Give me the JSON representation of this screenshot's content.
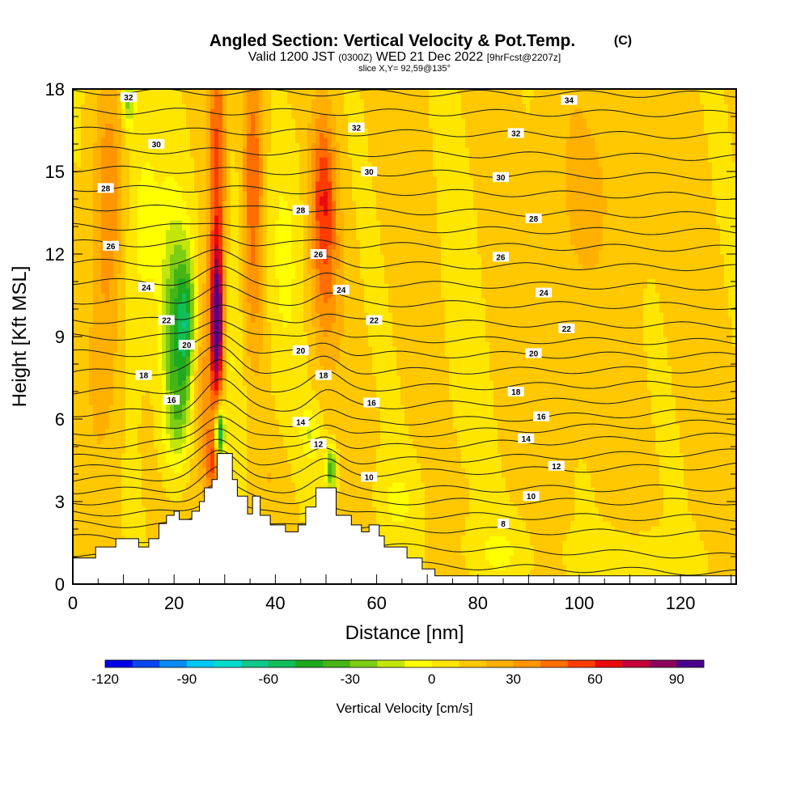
{
  "chart_data": {
    "type": "heatmap",
    "title": "Angled Section: Vertical Velocity & Pot.Temp.",
    "title_mark": "(C)",
    "subtitle_parts": [
      "Valid 1200 JST",
      "(0300Z)",
      "WED 21 Dec 2022",
      "[9hrFcst@2207z]"
    ],
    "slice_label": "slice X,Y= 92,59@135°",
    "xlabel": "Distance [nm]",
    "ylabel": "Height [Kft MSL]",
    "xlim": [
      0,
      131
    ],
    "ylim": [
      0,
      18
    ],
    "x_ticks": [
      0,
      20,
      40,
      60,
      80,
      100,
      120
    ],
    "y_ticks": [
      0,
      3,
      6,
      9,
      12,
      15,
      18
    ],
    "colorbar": {
      "label": "Vertical Velocity [cm/s]",
      "tick_values": [
        -120,
        -90,
        -60,
        -30,
        0,
        30,
        60,
        90
      ],
      "tick_labels": [
        "-120",
        "-90",
        "-60",
        "-30",
        "0",
        "30",
        "60",
        "90"
      ],
      "bins": [
        {
          "from": -120,
          "to": -110,
          "color": "#0000e6"
        },
        {
          "from": -110,
          "to": -100,
          "color": "#0a46f0"
        },
        {
          "from": -100,
          "to": -90,
          "color": "#0a8cf5"
        },
        {
          "from": -90,
          "to": -80,
          "color": "#00c8f5"
        },
        {
          "from": -80,
          "to": -70,
          "color": "#00dccd"
        },
        {
          "from": -70,
          "to": -60,
          "color": "#10c88c"
        },
        {
          "from": -60,
          "to": -50,
          "color": "#10be5a"
        },
        {
          "from": -50,
          "to": -40,
          "color": "#1eaa1e"
        },
        {
          "from": -40,
          "to": -30,
          "color": "#46b414"
        },
        {
          "from": -30,
          "to": -20,
          "color": "#7dcd14"
        },
        {
          "from": -20,
          "to": -10,
          "color": "#c3e60a"
        },
        {
          "from": -10,
          "to": 0,
          "color": "#ffff00"
        },
        {
          "from": 0,
          "to": 10,
          "color": "#ffe600"
        },
        {
          "from": 10,
          "to": 20,
          "color": "#ffc800"
        },
        {
          "from": 20,
          "to": 30,
          "color": "#ffb000"
        },
        {
          "from": 30,
          "to": 40,
          "color": "#ff9600"
        },
        {
          "from": 40,
          "to": 50,
          "color": "#ff6e00"
        },
        {
          "from": 50,
          "to": 60,
          "color": "#ff3c00"
        },
        {
          "from": 60,
          "to": 70,
          "color": "#eb0a0a"
        },
        {
          "from": 70,
          "to": 80,
          "color": "#c3003c"
        },
        {
          "from": 80,
          "to": 90,
          "color": "#8c005a"
        },
        {
          "from": 90,
          "to": 100,
          "color": "#4b008c"
        }
      ]
    },
    "background_velocity_cms": 12,
    "velocity_features": [
      {
        "x_nm": 7,
        "x_width_nm": 3.0,
        "z_kft": 14,
        "z_width_kft": 4.0,
        "value_cms": 40
      },
      {
        "x_nm": 6,
        "x_width_nm": 3.0,
        "z_kft": 8,
        "z_width_kft": 3.5,
        "value_cms": 28
      },
      {
        "x_nm": 14,
        "x_width_nm": 4.0,
        "z_kft": 13,
        "z_width_kft": 4.5,
        "value_cms": -6
      },
      {
        "x_nm": 11,
        "x_width_nm": 1.2,
        "z_kft": 17.5,
        "z_width_kft": 1.0,
        "value_cms": -25
      },
      {
        "x_nm": 20,
        "x_width_nm": 2.6,
        "z_kft": 9.5,
        "z_width_kft": 4.0,
        "value_cms": -30
      },
      {
        "x_nm": 22.5,
        "x_width_nm": 1.8,
        "z_kft": 9.5,
        "z_width_kft": 2.5,
        "value_cms": -40
      },
      {
        "x_nm": 21,
        "x_width_nm": 3.0,
        "z_kft": 6,
        "z_width_kft": 2.0,
        "value_cms": -12
      },
      {
        "x_nm": 26,
        "x_width_nm": 3.0,
        "z_kft": 7,
        "z_width_kft": 3.5,
        "value_cms": 35
      },
      {
        "x_nm": 28.5,
        "x_width_nm": 1.8,
        "z_kft": 14,
        "z_width_kft": 6.5,
        "value_cms": 55
      },
      {
        "x_nm": 28.5,
        "x_width_nm": 1.1,
        "z_kft": 9.5,
        "z_width_kft": 2.5,
        "value_cms": 88
      },
      {
        "x_nm": 27.5,
        "x_width_nm": 1.3,
        "z_kft": 4.5,
        "z_width_kft": 1.2,
        "value_cms": 45
      },
      {
        "x_nm": 29,
        "x_width_nm": 0.9,
        "z_kft": 5.5,
        "z_width_kft": 0.9,
        "value_cms": -70
      },
      {
        "x_nm": 32,
        "x_width_nm": 3.0,
        "z_kft": 10,
        "z_width_kft": 6.0,
        "value_cms": -8
      },
      {
        "x_nm": 35.5,
        "x_width_nm": 2.2,
        "z_kft": 15,
        "z_width_kft": 4.5,
        "value_cms": 52
      },
      {
        "x_nm": 35,
        "x_width_nm": 3.0,
        "z_kft": 10,
        "z_width_kft": 3.0,
        "value_cms": 25
      },
      {
        "x_nm": 42,
        "x_width_nm": 4.0,
        "z_kft": 12,
        "z_width_kft": 5.0,
        "value_cms": 0
      },
      {
        "x_nm": 49.5,
        "x_width_nm": 2.5,
        "z_kft": 14.5,
        "z_width_kft": 2.8,
        "value_cms": 52
      },
      {
        "x_nm": 50,
        "x_width_nm": 3.0,
        "z_kft": 11,
        "z_width_kft": 3.0,
        "value_cms": 35
      },
      {
        "x_nm": 47,
        "x_width_nm": 2.0,
        "z_kft": 5.5,
        "z_width_kft": 1.0,
        "value_cms": -8
      },
      {
        "x_nm": 51,
        "x_width_nm": 1.0,
        "z_kft": 4.2,
        "z_width_kft": 0.8,
        "value_cms": -40
      },
      {
        "x_nm": 39,
        "x_width_nm": 2.0,
        "z_kft": 4.0,
        "z_width_kft": 1.0,
        "value_cms": 18
      },
      {
        "x_nm": 64,
        "x_width_nm": 4.0,
        "z_kft": 3.0,
        "z_width_kft": 1.5,
        "value_cms": 0
      },
      {
        "x_nm": 76,
        "x_width_nm": 4.0,
        "z_kft": 9.0,
        "z_width_kft": 8.0,
        "value_cms": 8
      },
      {
        "x_nm": 98,
        "x_width_nm": 6.0,
        "z_kft": 13.0,
        "z_width_kft": 6.0,
        "value_cms": 20
      },
      {
        "x_nm": 108,
        "x_width_nm": 6.0,
        "z_kft": 15.0,
        "z_width_kft": 4.0,
        "value_cms": 18
      },
      {
        "x_nm": 84,
        "x_width_nm": 6.0,
        "z_kft": 1.2,
        "z_width_kft": 1.2,
        "value_cms": 0
      },
      {
        "x_nm": 110,
        "x_width_nm": 12.0,
        "z_kft": 1.0,
        "z_width_kft": 0.9,
        "value_cms": 0
      }
    ],
    "terrain_kft": [
      [
        0,
        0.95
      ],
      [
        4.5,
        0.95
      ],
      [
        4.5,
        1.35
      ],
      [
        8.5,
        1.35
      ],
      [
        8.5,
        1.65
      ],
      [
        13,
        1.65
      ],
      [
        13,
        1.35
      ],
      [
        15,
        1.35
      ],
      [
        15,
        1.65
      ],
      [
        17,
        1.65
      ],
      [
        17,
        2.2
      ],
      [
        18.5,
        2.2
      ],
      [
        18.5,
        2.5
      ],
      [
        20,
        2.5
      ],
      [
        20,
        2.65
      ],
      [
        21,
        2.65
      ],
      [
        21,
        2.35
      ],
      [
        23.5,
        2.35
      ],
      [
        23.5,
        2.65
      ],
      [
        25,
        2.65
      ],
      [
        25,
        3.0
      ],
      [
        26,
        3.0
      ],
      [
        26,
        3.5
      ],
      [
        27.5,
        3.5
      ],
      [
        27.5,
        3.8
      ],
      [
        28.5,
        3.8
      ],
      [
        28.5,
        4.75
      ],
      [
        31.5,
        4.75
      ],
      [
        31.5,
        3.8
      ],
      [
        32.5,
        3.8
      ],
      [
        32.5,
        3.2
      ],
      [
        34.5,
        3.2
      ],
      [
        34.5,
        2.55
      ],
      [
        35.5,
        2.55
      ],
      [
        35.5,
        3.2
      ],
      [
        37,
        3.2
      ],
      [
        37,
        2.5
      ],
      [
        39,
        2.5
      ],
      [
        39,
        2.15
      ],
      [
        42,
        2.15
      ],
      [
        42,
        1.9
      ],
      [
        44.5,
        1.9
      ],
      [
        44.5,
        2.15
      ],
      [
        46,
        2.15
      ],
      [
        46,
        2.8
      ],
      [
        48,
        2.8
      ],
      [
        48,
        3.5
      ],
      [
        52,
        3.5
      ],
      [
        52,
        2.5
      ],
      [
        55,
        2.5
      ],
      [
        55,
        2.15
      ],
      [
        57,
        2.15
      ],
      [
        57,
        1.9
      ],
      [
        58.5,
        1.9
      ],
      [
        58.5,
        2.15
      ],
      [
        60.5,
        2.15
      ],
      [
        60.5,
        1.75
      ],
      [
        61.5,
        1.75
      ],
      [
        61.5,
        1.35
      ],
      [
        66,
        1.35
      ],
      [
        66,
        0.95
      ],
      [
        69,
        0.95
      ],
      [
        69,
        0.55
      ],
      [
        71.5,
        0.55
      ],
      [
        71.5,
        0.3
      ],
      [
        131,
        0.3
      ]
    ],
    "isentropes_c": [
      {
        "c": 6,
        "y_left_kft": 1.0,
        "y_right_kft": 0.4
      },
      {
        "c": 7,
        "y_left_kft": 1.7,
        "y_right_kft": 1.0
      },
      {
        "c": 8,
        "y_left_kft": 2.2,
        "y_right_kft": 1.8
      },
      {
        "c": 9,
        "y_left_kft": 2.6,
        "y_right_kft": 2.4
      },
      {
        "c": 10,
        "y_left_kft": 3.0,
        "y_right_kft": 3.0
      },
      {
        "c": 11,
        "y_left_kft": 3.4,
        "y_right_kft": 3.5
      },
      {
        "c": 12,
        "y_left_kft": 3.8,
        "y_right_kft": 4.3
      },
      {
        "c": 13,
        "y_left_kft": 4.2,
        "y_right_kft": 4.8
      },
      {
        "c": 14,
        "y_left_kft": 4.6,
        "y_right_kft": 5.4
      },
      {
        "c": 15,
        "y_left_kft": 5.0,
        "y_right_kft": 5.9
      },
      {
        "c": 16,
        "y_left_kft": 5.5,
        "y_right_kft": 6.3
      },
      {
        "c": 17,
        "y_left_kft": 6.2,
        "y_right_kft": 6.8
      },
      {
        "c": 18,
        "y_left_kft": 7.0,
        "y_right_kft": 7.3
      },
      {
        "c": 19,
        "y_left_kft": 7.7,
        "y_right_kft": 7.8
      },
      {
        "c": 20,
        "y_left_kft": 8.4,
        "y_right_kft": 8.3
      },
      {
        "c": 21,
        "y_left_kft": 9.0,
        "y_right_kft": 8.8
      },
      {
        "c": 22,
        "y_left_kft": 9.6,
        "y_right_kft": 9.4
      },
      {
        "c": 23,
        "y_left_kft": 10.3,
        "y_right_kft": 10.1
      },
      {
        "c": 24,
        "y_left_kft": 11.0,
        "y_right_kft": 10.8
      },
      {
        "c": 25,
        "y_left_kft": 11.7,
        "y_right_kft": 11.5
      },
      {
        "c": 26,
        "y_left_kft": 12.4,
        "y_right_kft": 12.2
      },
      {
        "c": 27,
        "y_left_kft": 13.0,
        "y_right_kft": 12.8
      },
      {
        "c": 28,
        "y_left_kft": 13.7,
        "y_right_kft": 13.4
      },
      {
        "c": 29,
        "y_left_kft": 14.4,
        "y_right_kft": 14.1
      },
      {
        "c": 30,
        "y_left_kft": 15.1,
        "y_right_kft": 14.8
      },
      {
        "c": 31,
        "y_left_kft": 15.8,
        "y_right_kft": 15.5
      },
      {
        "c": 32,
        "y_left_kft": 16.5,
        "y_right_kft": 16.3
      },
      {
        "c": 33,
        "y_left_kft": 17.2,
        "y_right_kft": 17.1
      },
      {
        "c": 34,
        "y_left_kft": 17.9,
        "y_right_kft": 17.8
      }
    ],
    "isentrope_labels": [
      {
        "text": "32",
        "x_nm": 11,
        "z_kft": 17.7
      },
      {
        "text": "30",
        "x_nm": 16.5,
        "z_kft": 16.0
      },
      {
        "text": "28",
        "x_nm": 6.5,
        "z_kft": 14.4
      },
      {
        "text": "26",
        "x_nm": 7.5,
        "z_kft": 12.3
      },
      {
        "text": "24",
        "x_nm": 14.5,
        "z_kft": 10.8
      },
      {
        "text": "22",
        "x_nm": 18.5,
        "z_kft": 9.6
      },
      {
        "text": "20",
        "x_nm": 22.5,
        "z_kft": 8.7
      },
      {
        "text": "18",
        "x_nm": 14,
        "z_kft": 7.6
      },
      {
        "text": "16",
        "x_nm": 19.5,
        "z_kft": 6.7
      },
      {
        "text": "32",
        "x_nm": 56,
        "z_kft": 16.6
      },
      {
        "text": "30",
        "x_nm": 58.5,
        "z_kft": 15.0
      },
      {
        "text": "28",
        "x_nm": 45,
        "z_kft": 13.6
      },
      {
        "text": "26",
        "x_nm": 48.5,
        "z_kft": 12.0
      },
      {
        "text": "24",
        "x_nm": 53,
        "z_kft": 10.7
      },
      {
        "text": "22",
        "x_nm": 59.5,
        "z_kft": 9.6
      },
      {
        "text": "20",
        "x_nm": 45,
        "z_kft": 8.5
      },
      {
        "text": "18",
        "x_nm": 49.5,
        "z_kft": 7.6
      },
      {
        "text": "16",
        "x_nm": 59,
        "z_kft": 6.6
      },
      {
        "text": "14",
        "x_nm": 45,
        "z_kft": 5.9
      },
      {
        "text": "12",
        "x_nm": 48.5,
        "z_kft": 5.1
      },
      {
        "text": "10",
        "x_nm": 58.5,
        "z_kft": 3.9
      },
      {
        "text": "34",
        "x_nm": 98,
        "z_kft": 17.6
      },
      {
        "text": "32",
        "x_nm": 87.5,
        "z_kft": 16.4
      },
      {
        "text": "30",
        "x_nm": 84.5,
        "z_kft": 14.8
      },
      {
        "text": "28",
        "x_nm": 91,
        "z_kft": 13.3
      },
      {
        "text": "26",
        "x_nm": 84.5,
        "z_kft": 11.9
      },
      {
        "text": "24",
        "x_nm": 93,
        "z_kft": 10.6
      },
      {
        "text": "22",
        "x_nm": 97.5,
        "z_kft": 9.3
      },
      {
        "text": "20",
        "x_nm": 91,
        "z_kft": 8.4
      },
      {
        "text": "18",
        "x_nm": 87.5,
        "z_kft": 7.0
      },
      {
        "text": "16",
        "x_nm": 92.5,
        "z_kft": 6.1
      },
      {
        "text": "14",
        "x_nm": 89.5,
        "z_kft": 5.3
      },
      {
        "text": "12",
        "x_nm": 95.5,
        "z_kft": 4.3
      },
      {
        "text": "10",
        "x_nm": 90.5,
        "z_kft": 3.2
      },
      {
        "text": "8",
        "x_nm": 85,
        "z_kft": 2.2
      }
    ]
  }
}
